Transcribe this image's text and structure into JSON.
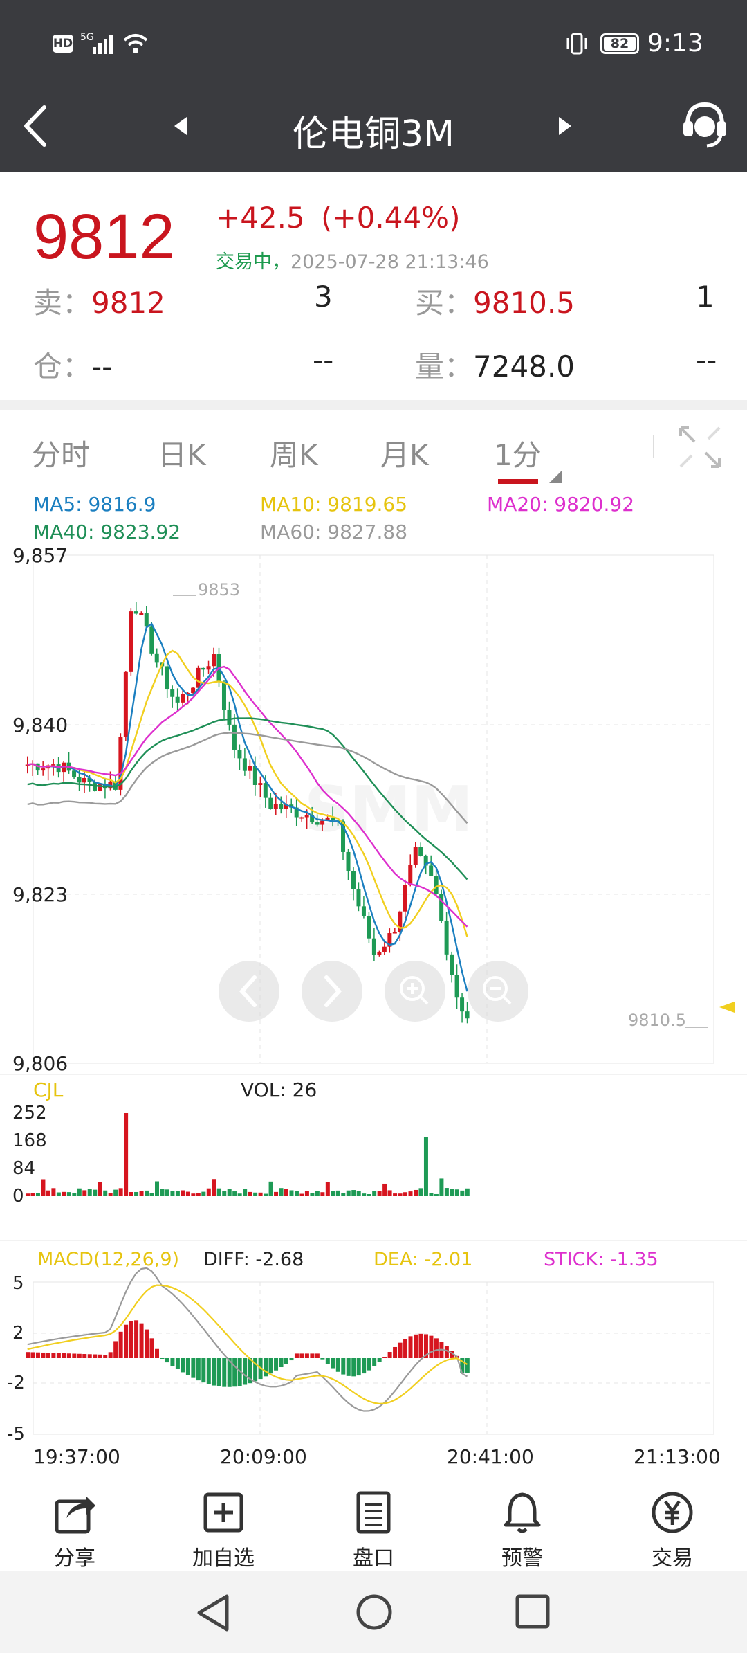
{
  "status_bar": {
    "hd": "HD",
    "network": "5G",
    "battery": "82",
    "time": "9:13"
  },
  "header": {
    "title": "伦电铜3M"
  },
  "quote": {
    "price": "9812",
    "change": "+42.5",
    "change_pct": "(+0.44%)",
    "status": "交易中，",
    "timestamp": "2025-07-28 21:13:46",
    "sell_label": "卖：",
    "sell_price": "9812",
    "sell_qty": "3",
    "buy_label": "买：",
    "buy_price": "9810.5",
    "buy_qty": "1",
    "oi_label": "仓：",
    "oi_value": "--",
    "oi_change": "--",
    "vol_label": "量：",
    "vol_value": "7248.0",
    "vol_change": "--"
  },
  "tabs": [
    {
      "label": "分时"
    },
    {
      "label": "日K"
    },
    {
      "label": "周K"
    },
    {
      "label": "月K"
    },
    {
      "label": "1分",
      "active": true
    }
  ],
  "ma_legend": {
    "ma5": "MA5: 9816.9",
    "ma10": "MA10: 9819.65",
    "ma20": "MA20: 9820.92",
    "ma40": "MA40: 9823.92",
    "ma60": "MA60: 9827.88"
  },
  "colors": {
    "up": "#d6151f",
    "down": "#1e9a55",
    "ma5": "#1b7fc0",
    "ma10": "#f1cf1f",
    "ma20": "#dd2fcd",
    "ma40": "#1f8f57",
    "ma60": "#9a9a9a"
  },
  "price_axis": {
    "labels": [
      "9,857",
      "9,840",
      "9,823",
      "9,806"
    ]
  },
  "annotations": {
    "high": "9853",
    "last": "9810.5"
  },
  "volume_panel": {
    "title": "CJL",
    "vol": "VOL: 26",
    "labels": [
      "252",
      "168",
      "84",
      "0"
    ]
  },
  "macd_panel": {
    "title": "MACD(12,26,9)",
    "diff": "DIFF: -2.68",
    "dea": "DEA: -2.01",
    "stick": "STICK: -1.35",
    "labels": [
      "5",
      "2",
      "-2",
      "-5"
    ]
  },
  "time_axis": [
    "19:37:00",
    "20:09:00",
    "20:41:00",
    "21:13:00"
  ],
  "toolbar": [
    {
      "label": "分享",
      "icon": "share-icon"
    },
    {
      "label": "加自选",
      "icon": "add-favorite-icon"
    },
    {
      "label": "盘口",
      "icon": "order-book-icon"
    },
    {
      "label": "预警",
      "icon": "bell-icon"
    },
    {
      "label": "交易",
      "icon": "trade-yen-icon"
    }
  ]
}
